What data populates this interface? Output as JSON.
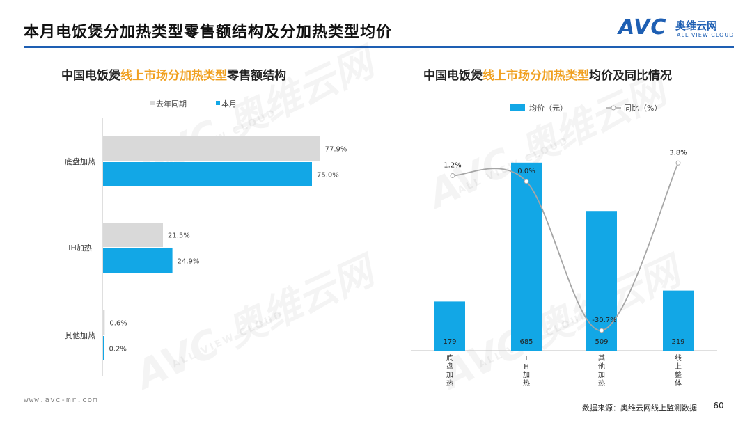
{
  "page": {
    "title": "本月电饭煲分加热类型零售额结构及分加热类型均价",
    "page_number": "-60-"
  },
  "logo": {
    "mark": "AVC",
    "cn": "奥维云网",
    "en": "ALL VIEW CLOUD"
  },
  "watermark": {
    "mark": "AVC 奥维云网",
    "en": "ALL VIEW CLOUD"
  },
  "left_panel": {
    "title_prefix": "中国电饭煲",
    "title_highlight": "线上市场分加热类型",
    "title_suffix": "零售额结构"
  },
  "right_panel": {
    "title_prefix": "中国电饭煲",
    "title_highlight": "线上市场分加热类型",
    "title_suffix": "均价及同比情况"
  },
  "footer": {
    "url": "www.avc-mr.com",
    "source": "数据来源：奥维云网线上监测数据"
  },
  "colors": {
    "accent_blue": "#12a7e6",
    "last_year_gray": "#d9d9d9",
    "highlight_orange": "#f0a020",
    "line_gray": "#a6a6a6",
    "brand_blue": "#1e5fb3"
  },
  "chart_data": [
    {
      "type": "bar",
      "orientation": "horizontal",
      "categories": [
        "底盘加热",
        "IH加热",
        "其他加热"
      ],
      "series": [
        {
          "name": "去年同期",
          "values": [
            77.9,
            21.5,
            0.6
          ],
          "labels": [
            "77.9%",
            "21.5%",
            "0.6%"
          ],
          "color": "#d9d9d9"
        },
        {
          "name": "本月",
          "values": [
            75.0,
            24.9,
            0.2
          ],
          "labels": [
            "75.0%",
            "24.9%",
            "0.2%"
          ],
          "color": "#12a7e6"
        }
      ],
      "unit": "%",
      "xlim": [
        0,
        100
      ],
      "legend": "top-left"
    },
    {
      "type": "bar",
      "categories": [
        "底盘加热",
        "IH加热",
        "其他加热",
        "线上整体"
      ],
      "category_labels": [
        "底\n盘\n加\n热",
        "I\nH\n加\n热",
        "其\n他\n加\n热",
        "线\n上\n整\n体"
      ],
      "series": [
        {
          "name": "均价（元）",
          "type": "bar",
          "values": [
            179,
            685,
            509,
            219
          ],
          "labels": [
            "179",
            "685",
            "509",
            "219"
          ],
          "color": "#12a7e6"
        },
        {
          "name": "同比（%）",
          "type": "line",
          "values": [
            1.2,
            0.0,
            -30.7,
            3.8
          ],
          "labels": [
            "1.2%",
            "0.0%",
            "-30.7%",
            "3.8%"
          ],
          "color": "#a6a6a6"
        }
      ],
      "ylim": [
        0,
        720
      ],
      "y2lim": [
        -35,
        8
      ],
      "legend": "top"
    }
  ]
}
